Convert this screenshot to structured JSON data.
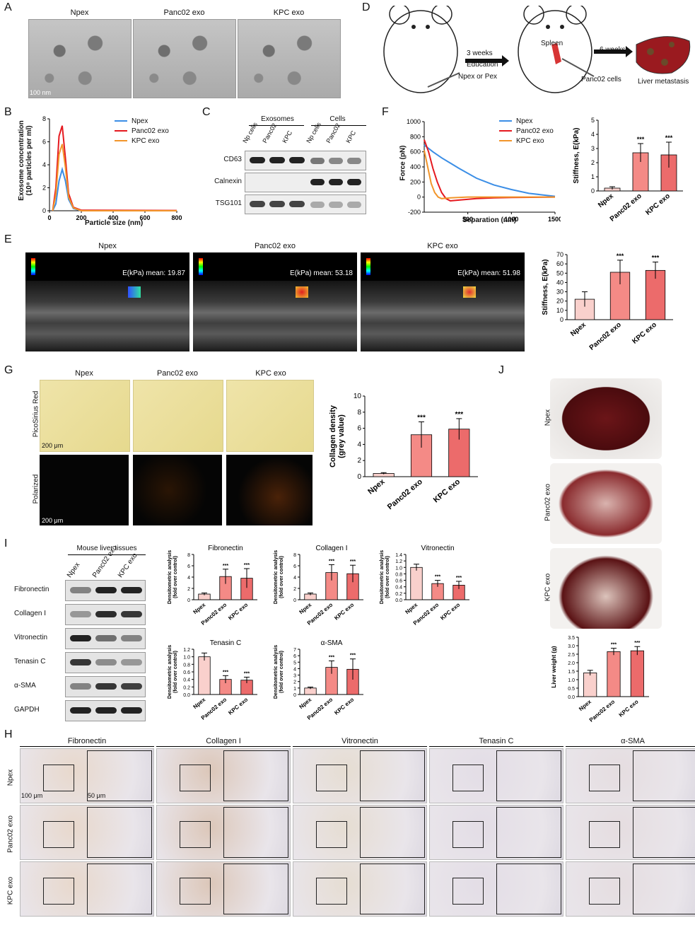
{
  "panels": {
    "A": "A",
    "B": "B",
    "C": "C",
    "D": "D",
    "E": "E",
    "F": "F",
    "G": "G",
    "H": "H",
    "I": "I",
    "J": "J"
  },
  "A": {
    "titles": [
      "Npex",
      "Panc02 exo",
      "KPC exo"
    ],
    "scale": "100 nm"
  },
  "B": {
    "ylabel": "Exosome concentration",
    "ylabel2": "(10⁸ particles per ml)",
    "xlabel": "Particle size (nm)",
    "legend": [
      "Npex",
      "Panc02 exo",
      "KPC exo"
    ]
  },
  "C": {
    "groups": [
      "Exosomes",
      "Cells"
    ],
    "lanes": [
      "Np cells",
      "Panc02",
      "KPC",
      "Np cells",
      "Panc02",
      "KPC"
    ],
    "rows": [
      "CD63",
      "Calnexin",
      "TSG101"
    ]
  },
  "D": {
    "step1": "3 weeks",
    "step1b": "Education",
    "inj": "Npex or Pex",
    "spleen": "Spleen",
    "step2": "6 weeks",
    "cells": "Panc02 cells",
    "outcome": "Liver metastasis"
  },
  "E": {
    "titles": [
      "Npex",
      "Panc02 exo",
      "KPC exo"
    ],
    "readouts": [
      "E(kPa) mean: 19.87",
      "E(kPa) mean: 53.18",
      "E(kPa) mean: 51.98"
    ]
  },
  "F": {
    "ylabel": "Force (pN)",
    "xlabel": "Separation (nm)",
    "legend": [
      "Npex",
      "Panc02 exo",
      "KPC exo"
    ]
  },
  "G": {
    "titles": [
      "Npex",
      "Panc02 exo",
      "KPC exo"
    ],
    "rows": [
      "PicoSirius Red",
      "Polarized"
    ],
    "scale": "200 μm"
  },
  "I": {
    "header": "Mouse liver tissues",
    "lanes": [
      "Npex",
      "Panc02 exo",
      "KPC exo"
    ],
    "rows": [
      "Fibronectin",
      "Collagen I",
      "Vitronectin",
      "Tenasin C",
      "α-SMA",
      "GAPDH"
    ],
    "ylabel": "Densitometric analysis",
    "ylabel2": "(fold over control)",
    "sig": "***"
  },
  "H": {
    "cols": [
      "Fibronectin",
      "Collagen I",
      "Vitronectin",
      "Tenasin C",
      "α-SMA"
    ],
    "rows": [
      "Npex",
      "Panc02 exo",
      "KPC exo"
    ],
    "scale1": "100 μm",
    "scale2": "50 μm"
  },
  "J": {
    "rows": [
      "Npex",
      "Panc02 exo",
      "KPC exo"
    ],
    "ylabel": "Liver weight (g)"
  },
  "colors": {
    "npex": "#3b8ee6",
    "panc02": "#e5191f",
    "kpc": "#f2952a",
    "bar_light": "#f9d0cc",
    "bar_mid": "#f48a86",
    "bar_dark": "#ec6b6b"
  },
  "chart_data": [
    {
      "id": "B",
      "type": "line",
      "xlim": [
        0,
        800
      ],
      "ylim": [
        0,
        8
      ],
      "xticks": [
        "0",
        "200",
        "400",
        "600",
        "800"
      ],
      "yticks": [
        "0",
        "2",
        "4",
        "6",
        "8"
      ],
      "series": [
        {
          "name": "Npex",
          "x": [
            20,
            40,
            60,
            80,
            100,
            120,
            150,
            200,
            800
          ],
          "y": [
            0,
            0.6,
            2.6,
            3.6,
            2.6,
            1.0,
            0.2,
            0,
            0
          ]
        },
        {
          "name": "Panc02 exo",
          "x": [
            20,
            40,
            60,
            80,
            100,
            120,
            150,
            200,
            800
          ],
          "y": [
            0,
            2.0,
            6.5,
            7.4,
            4.6,
            1.5,
            0.3,
            0.05,
            0.02
          ]
        },
        {
          "name": "KPC exo",
          "x": [
            20,
            40,
            60,
            80,
            100,
            120,
            150,
            200,
            800
          ],
          "y": [
            0,
            1.4,
            4.9,
            5.8,
            3.8,
            1.2,
            0.25,
            0,
            0
          ]
        }
      ]
    },
    {
      "id": "F-curve",
      "type": "line",
      "xlim": [
        0,
        1500
      ],
      "ylim": [
        -200,
        1000
      ],
      "xticks": [
        "500",
        "1000",
        "1500"
      ],
      "yticks": [
        "-200",
        "0",
        "200",
        "400",
        "600",
        "800",
        "1000"
      ],
      "series": [
        {
          "name": "Npex",
          "x": [
            0,
            100,
            200,
            300,
            400,
            600,
            800,
            1000,
            1200,
            1500
          ],
          "y": [
            690,
            600,
            520,
            450,
            380,
            250,
            160,
            100,
            50,
            10
          ]
        },
        {
          "name": "Panc02 exo",
          "x": [
            0,
            50,
            100,
            150,
            200,
            250,
            300,
            400,
            600,
            800,
            1000,
            1500
          ],
          "y": [
            760,
            600,
            380,
            200,
            60,
            -20,
            -50,
            -40,
            -20,
            -10,
            -5,
            0
          ]
        },
        {
          "name": "KPC exo",
          "x": [
            0,
            40,
            80,
            120,
            160,
            200,
            300,
            500,
            1500
          ],
          "y": [
            620,
            400,
            180,
            60,
            0,
            -20,
            -10,
            0,
            0
          ]
        }
      ]
    },
    {
      "id": "F-bar",
      "type": "bar",
      "ylabel": "Stiffness, E(kPa)",
      "ylim": [
        0,
        5
      ],
      "yticks": [
        "0",
        "1",
        "2",
        "3",
        "4",
        "5"
      ],
      "categories": [
        "Npex",
        "Panc02 exo",
        "KPC exo"
      ],
      "values": [
        0.2,
        2.7,
        2.55
      ],
      "errors": [
        0.1,
        0.65,
        0.9
      ],
      "sig": [
        "",
        "***",
        "***"
      ]
    },
    {
      "id": "E-bar",
      "type": "bar",
      "ylabel": "Stiffness, E(kPa)",
      "ylim": [
        0,
        70
      ],
      "yticks": [
        "0",
        "10",
        "20",
        "30",
        "40",
        "50",
        "60",
        "70"
      ],
      "categories": [
        "Npex",
        "Panc02 exo",
        "KPC exo"
      ],
      "values": [
        22,
        51,
        53
      ],
      "errors": [
        8,
        13,
        9
      ],
      "sig": [
        "",
        "***",
        "***"
      ]
    },
    {
      "id": "G-bar",
      "type": "bar",
      "ylabel": "Collagen density",
      "ylabel2": "(grey value)",
      "ylim": [
        0,
        10
      ],
      "yticks": [
        "0",
        "2",
        "4",
        "6",
        "8",
        "10"
      ],
      "categories": [
        "Npex",
        "Panc02 exo",
        "KPC exo"
      ],
      "values": [
        0.4,
        5.2,
        5.9
      ],
      "errors": [
        0.1,
        1.6,
        1.3
      ],
      "sig": [
        "",
        "***",
        "***"
      ]
    },
    {
      "id": "I-Fibronectin",
      "type": "bar",
      "title": "Fibronectin",
      "ylim": [
        0,
        8
      ],
      "yticks": [
        "0",
        "2",
        "4",
        "6",
        "8"
      ],
      "categories": [
        "Npex",
        "Panc02 exo",
        "KPC exo"
      ],
      "values": [
        1.0,
        4.1,
        3.8
      ],
      "errors": [
        0.2,
        1.3,
        1.7
      ],
      "sig": [
        "",
        "***",
        "***"
      ]
    },
    {
      "id": "I-Collagen I",
      "type": "bar",
      "title": "Collagen I",
      "ylim": [
        0,
        8
      ],
      "yticks": [
        "0",
        "2",
        "4",
        "6",
        "8"
      ],
      "categories": [
        "Npex",
        "Panc02 exo",
        "KPC exo"
      ],
      "values": [
        1.0,
        4.8,
        4.6
      ],
      "errors": [
        0.2,
        1.4,
        1.5
      ],
      "sig": [
        "",
        "***",
        "***"
      ]
    },
    {
      "id": "I-Vitronectin",
      "type": "bar",
      "title": "Vitronectin",
      "ylim": [
        0,
        1.4
      ],
      "yticks": [
        "0.0",
        "0.2",
        "0.4",
        "0.6",
        "0.8",
        "1.0",
        "1.2",
        "1.4"
      ],
      "categories": [
        "Npex",
        "Panc02 exo",
        "KPC exo"
      ],
      "values": [
        1.0,
        0.5,
        0.45
      ],
      "errors": [
        0.1,
        0.1,
        0.12
      ],
      "sig": [
        "",
        "***",
        "***"
      ]
    },
    {
      "id": "I-Tenasin C",
      "type": "bar",
      "title": "Tenasin C",
      "ylim": [
        0,
        1.2
      ],
      "yticks": [
        "0.0",
        "0.2",
        "0.4",
        "0.6",
        "0.8",
        "1.0",
        "1.2"
      ],
      "categories": [
        "Npex",
        "Panc02 exo",
        "KPC exo"
      ],
      "values": [
        1.0,
        0.4,
        0.38
      ],
      "errors": [
        0.1,
        0.1,
        0.08
      ],
      "sig": [
        "",
        "***",
        "***"
      ]
    },
    {
      "id": "I-α-SMA",
      "type": "bar",
      "title": "α-SMA",
      "ylim": [
        0,
        7
      ],
      "yticks": [
        "0",
        "1",
        "2",
        "3",
        "4",
        "5",
        "6",
        "7"
      ],
      "categories": [
        "Npex",
        "Panc02 exo",
        "KPC exo"
      ],
      "values": [
        1.0,
        4.2,
        3.9
      ],
      "errors": [
        0.15,
        1.0,
        1.6
      ],
      "sig": [
        "",
        "***",
        "***"
      ]
    },
    {
      "id": "J-bar",
      "type": "bar",
      "ylabel": "Liver weight (g)",
      "ylim": [
        0,
        3.5
      ],
      "yticks": [
        "0.0",
        "0.5",
        "1.0",
        "1.5",
        "2.0",
        "2.5",
        "3.0",
        "3.5"
      ],
      "categories": [
        "Npex",
        "Panc02 exo",
        "KPC exo"
      ],
      "values": [
        1.4,
        2.65,
        2.7
      ],
      "errors": [
        0.15,
        0.2,
        0.25
      ],
      "sig": [
        "",
        "***",
        "***"
      ]
    }
  ]
}
